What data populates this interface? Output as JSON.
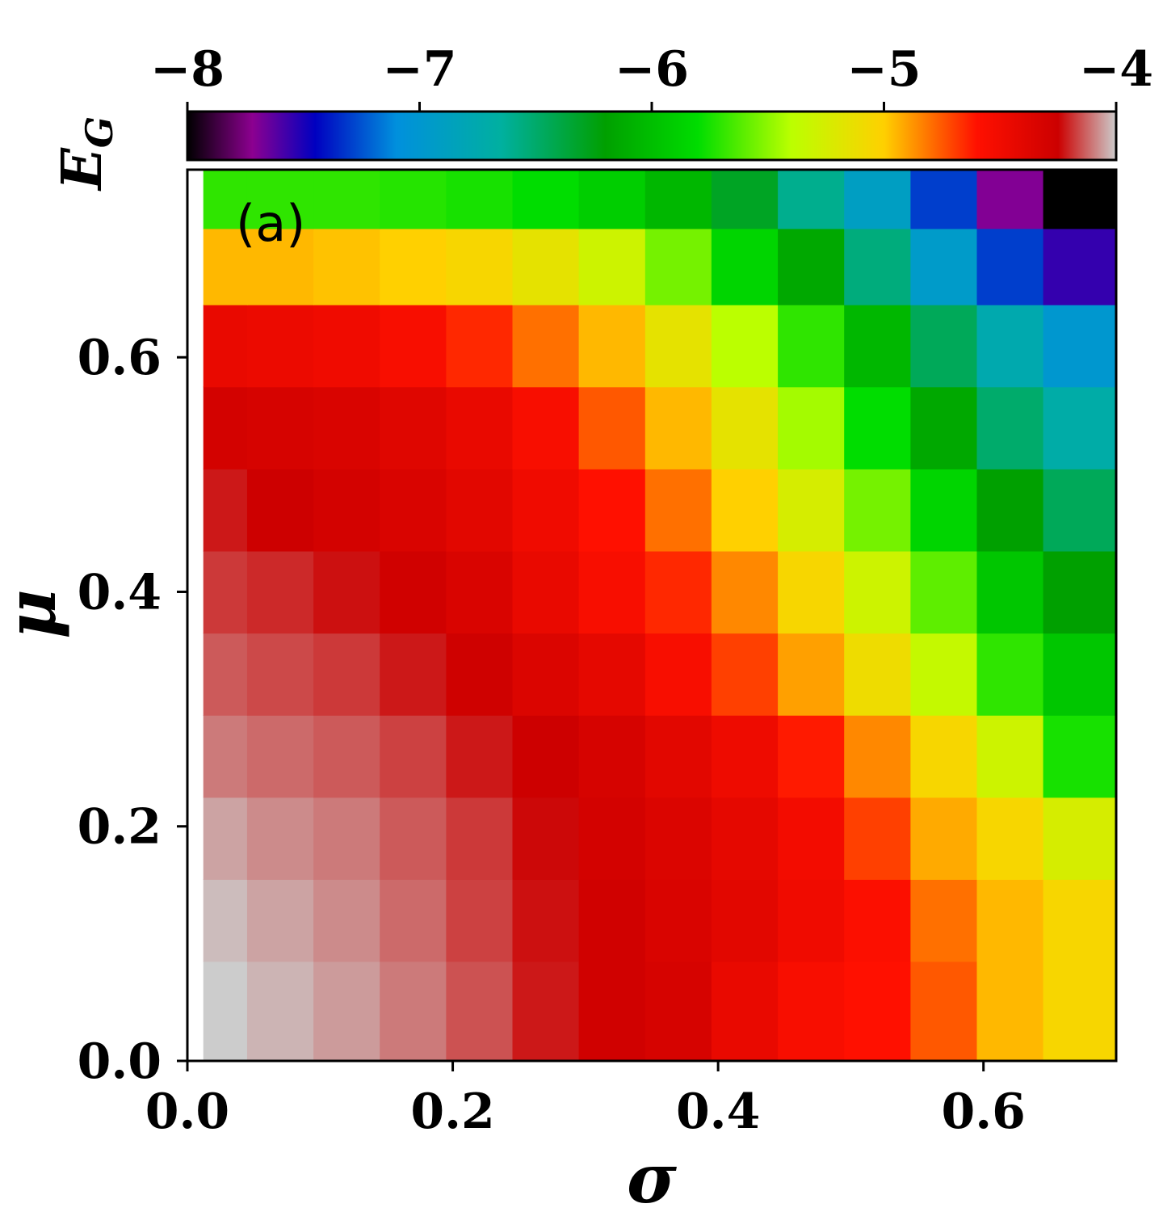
{
  "chart_data": {
    "type": "heatmap",
    "panel_label": "(a)",
    "xlabel": "σ",
    "ylabel": "μ",
    "xlim": [
      0.0,
      0.7
    ],
    "ylim": [
      0.0,
      0.76
    ],
    "x_ticks": [
      "0.0",
      "0.2",
      "0.4",
      "0.6"
    ],
    "x_tick_values": [
      0.0,
      0.2,
      0.4,
      0.6
    ],
    "y_ticks": [
      "0.0",
      "0.2",
      "0.4",
      "0.6"
    ],
    "y_tick_values": [
      0.0,
      0.2,
      0.4,
      0.6
    ],
    "colorbar": {
      "label": "E",
      "label_subscript": "G",
      "range": [
        -8,
        -4
      ],
      "ticks": [
        "−8",
        "−7",
        "−6",
        "−5",
        "−4"
      ],
      "tick_values": [
        -8,
        -7,
        -6,
        -5,
        -4
      ],
      "colormap_stops": [
        {
          "v": -8.0,
          "color": "#000000"
        },
        {
          "v": -7.72,
          "color": "#8c0090"
        },
        {
          "v": -7.45,
          "color": "#0000c0"
        },
        {
          "v": -7.1,
          "color": "#0090dd"
        },
        {
          "v": -6.65,
          "color": "#00b0a0"
        },
        {
          "v": -6.2,
          "color": "#00a000"
        },
        {
          "v": -5.8,
          "color": "#00dd00"
        },
        {
          "v": -5.4,
          "color": "#bbff00"
        },
        {
          "v": -5.0,
          "color": "#ffd000"
        },
        {
          "v": -4.6,
          "color": "#ff1000"
        },
        {
          "v": -4.25,
          "color": "#cc0000"
        },
        {
          "v": -4.0,
          "color": "#cccccc"
        }
      ]
    },
    "grid": false,
    "x": [
      0.02,
      0.07,
      0.12,
      0.17,
      0.22,
      0.27,
      0.32,
      0.37,
      0.42,
      0.47,
      0.52,
      0.57,
      0.62,
      0.67
    ],
    "y": [
      0.05,
      0.12,
      0.19,
      0.26,
      0.33,
      0.4,
      0.47,
      0.54,
      0.61,
      0.68,
      0.74
    ],
    "z": [
      [
        -4.0,
        -4.03,
        -4.06,
        -4.1,
        -4.15,
        -4.22,
        -4.28,
        -4.32,
        -4.45,
        -4.55,
        -4.6,
        -4.75,
        -4.95,
        -5.05
      ],
      [
        -4.02,
        -4.05,
        -4.08,
        -4.12,
        -4.17,
        -4.23,
        -4.28,
        -4.34,
        -4.4,
        -4.5,
        -4.58,
        -4.8,
        -4.95,
        -5.05
      ],
      [
        -4.05,
        -4.08,
        -4.1,
        -4.14,
        -4.18,
        -4.24,
        -4.3,
        -4.35,
        -4.42,
        -4.52,
        -4.7,
        -4.92,
        -5.05,
        -5.25
      ],
      [
        -4.1,
        -4.12,
        -4.14,
        -4.17,
        -4.22,
        -4.26,
        -4.32,
        -4.4,
        -4.48,
        -4.62,
        -4.85,
        -5.05,
        -5.3,
        -5.75
      ],
      [
        -4.14,
        -4.16,
        -4.18,
        -4.22,
        -4.27,
        -4.35,
        -4.42,
        -4.55,
        -4.7,
        -4.9,
        -5.1,
        -5.35,
        -5.7,
        -5.95
      ],
      [
        -4.18,
        -4.2,
        -4.23,
        -4.28,
        -4.34,
        -4.45,
        -4.55,
        -4.65,
        -4.85,
        -5.05,
        -5.3,
        -5.6,
        -5.95,
        -6.2
      ],
      [
        -4.22,
        -4.26,
        -4.3,
        -4.34,
        -4.4,
        -4.5,
        -4.6,
        -4.8,
        -5.0,
        -5.25,
        -5.55,
        -5.85,
        -6.2,
        -6.45
      ],
      [
        -4.3,
        -4.32,
        -4.34,
        -4.38,
        -4.45,
        -4.55,
        -4.75,
        -4.95,
        -5.15,
        -5.45,
        -5.8,
        -6.15,
        -6.5,
        -6.7
      ],
      [
        -4.45,
        -4.47,
        -4.5,
        -4.55,
        -4.65,
        -4.8,
        -4.95,
        -5.15,
        -5.4,
        -5.7,
        -6.05,
        -6.45,
        -6.75,
        -7.0
      ],
      [
        -4.95,
        -4.95,
        -4.97,
        -5.0,
        -5.05,
        -5.15,
        -5.3,
        -5.55,
        -5.85,
        -6.15,
        -6.55,
        -6.95,
        -7.3,
        -7.55
      ],
      [
        -5.7,
        -5.7,
        -5.7,
        -5.72,
        -5.75,
        -5.8,
        -5.9,
        -6.05,
        -6.3,
        -6.6,
        -6.9,
        -7.3,
        -7.7,
        -8.0
      ]
    ]
  }
}
